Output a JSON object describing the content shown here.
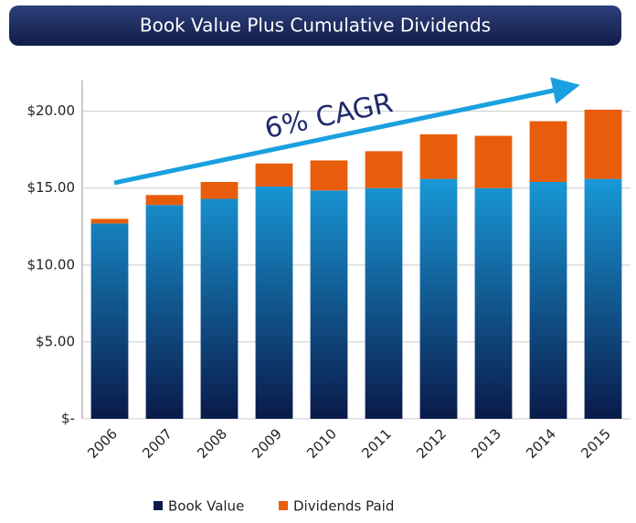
{
  "chart_data": {
    "type": "stacked_bar",
    "title": "Book Value Plus Cumulative Dividends",
    "annotation": "6% CAGR",
    "categories": [
      "2006",
      "2007",
      "2008",
      "2009",
      "2010",
      "2011",
      "2012",
      "2013",
      "2014",
      "2015"
    ],
    "series": [
      {
        "name": "Book Value",
        "color": "#1aa0e0",
        "values": [
          12.7,
          13.9,
          14.3,
          15.1,
          14.85,
          15.0,
          15.6,
          15.0,
          15.4,
          15.6
        ]
      },
      {
        "name": "Dividends Paid",
        "color": "#e85d0c",
        "values": [
          0.3,
          0.65,
          1.1,
          1.5,
          1.95,
          2.4,
          2.9,
          3.4,
          3.95,
          4.5
        ]
      }
    ],
    "ylim": [
      0,
      22
    ],
    "yticks": [
      {
        "value": 0,
        "label": "$-"
      },
      {
        "value": 5,
        "label": "$5.00"
      },
      {
        "value": 10,
        "label": "$10.00"
      },
      {
        "value": 15,
        "label": "$15.00"
      },
      {
        "value": 20,
        "label": "$20.00"
      }
    ],
    "grid": true,
    "legend": "bottom"
  }
}
